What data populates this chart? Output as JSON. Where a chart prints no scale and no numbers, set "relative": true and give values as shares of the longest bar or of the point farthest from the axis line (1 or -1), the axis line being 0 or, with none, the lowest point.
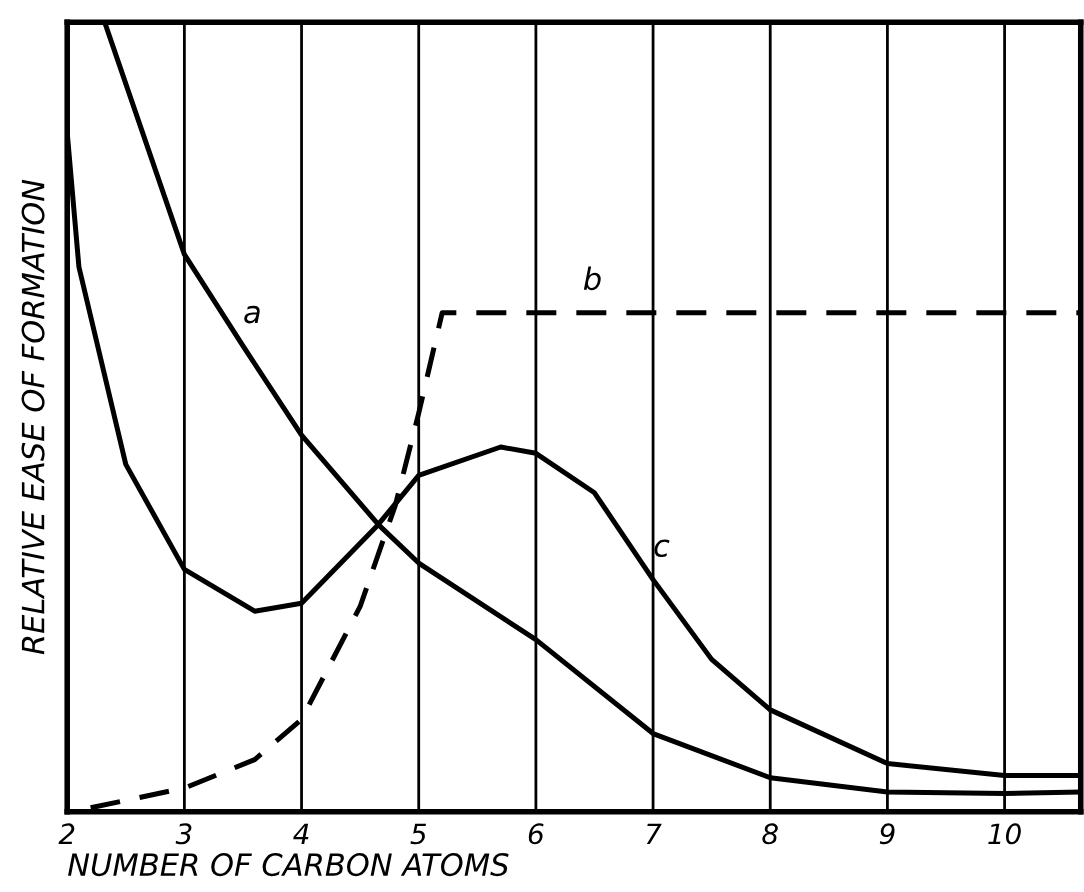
{
  "chart_data": {
    "type": "line",
    "relative": true,
    "xlabel": "NUMBER OF CARBON ATOMS",
    "ylabel": "RELATIVE EASE OF FORMATION",
    "xlim": [
      2,
      10.65
    ],
    "xticks": [
      2,
      3,
      4,
      5,
      6,
      7,
      8,
      9,
      10
    ],
    "grid": "x",
    "marker": "none",
    "tick_labels": "x",
    "series": [
      {
        "color": "#000000",
        "line_style": "solid",
        "x": [
          2.32,
          3,
          3.5,
          4,
          4.66,
          5,
          6,
          7,
          8,
          9,
          10,
          10.65
        ],
        "values": [
          1.0,
          0.706,
          0.59,
          0.477,
          0.363,
          0.315,
          0.218,
          0.099,
          0.043,
          0.025,
          0.023,
          0.025
        ]
      },
      {
        "color": "#000000",
        "line_style": "dashed",
        "x": [
          2.2,
          3,
          3.6,
          4,
          4.5,
          4.8,
          5,
          5.2,
          6.4,
          10.65
        ],
        "values": [
          0.005,
          0.03,
          0.066,
          0.117,
          0.26,
          0.388,
          0.505,
          0.632,
          0.632,
          0.632
        ]
      },
      {
        "color": "#000000",
        "line_style": "solid",
        "x": [
          2,
          2.1,
          2.5,
          3,
          3.6,
          4,
          4.65,
          5,
          5.7,
          6,
          6.5,
          7,
          7.5,
          8,
          9,
          10,
          10.65
        ],
        "values": [
          0.86,
          0.69,
          0.44,
          0.307,
          0.254,
          0.264,
          0.363,
          0.426,
          0.462,
          0.454,
          0.404,
          0.294,
          0.193,
          0.129,
          0.061,
          0.046,
          0.046
        ]
      }
    ],
    "annotations": [
      {
        "text": "a",
        "x": 3.5,
        "y": 0.59
      },
      {
        "text": "b",
        "x": 6.4,
        "y": 0.632
      },
      {
        "text": "c",
        "x": 7,
        "y": 0.294
      }
    ]
  }
}
